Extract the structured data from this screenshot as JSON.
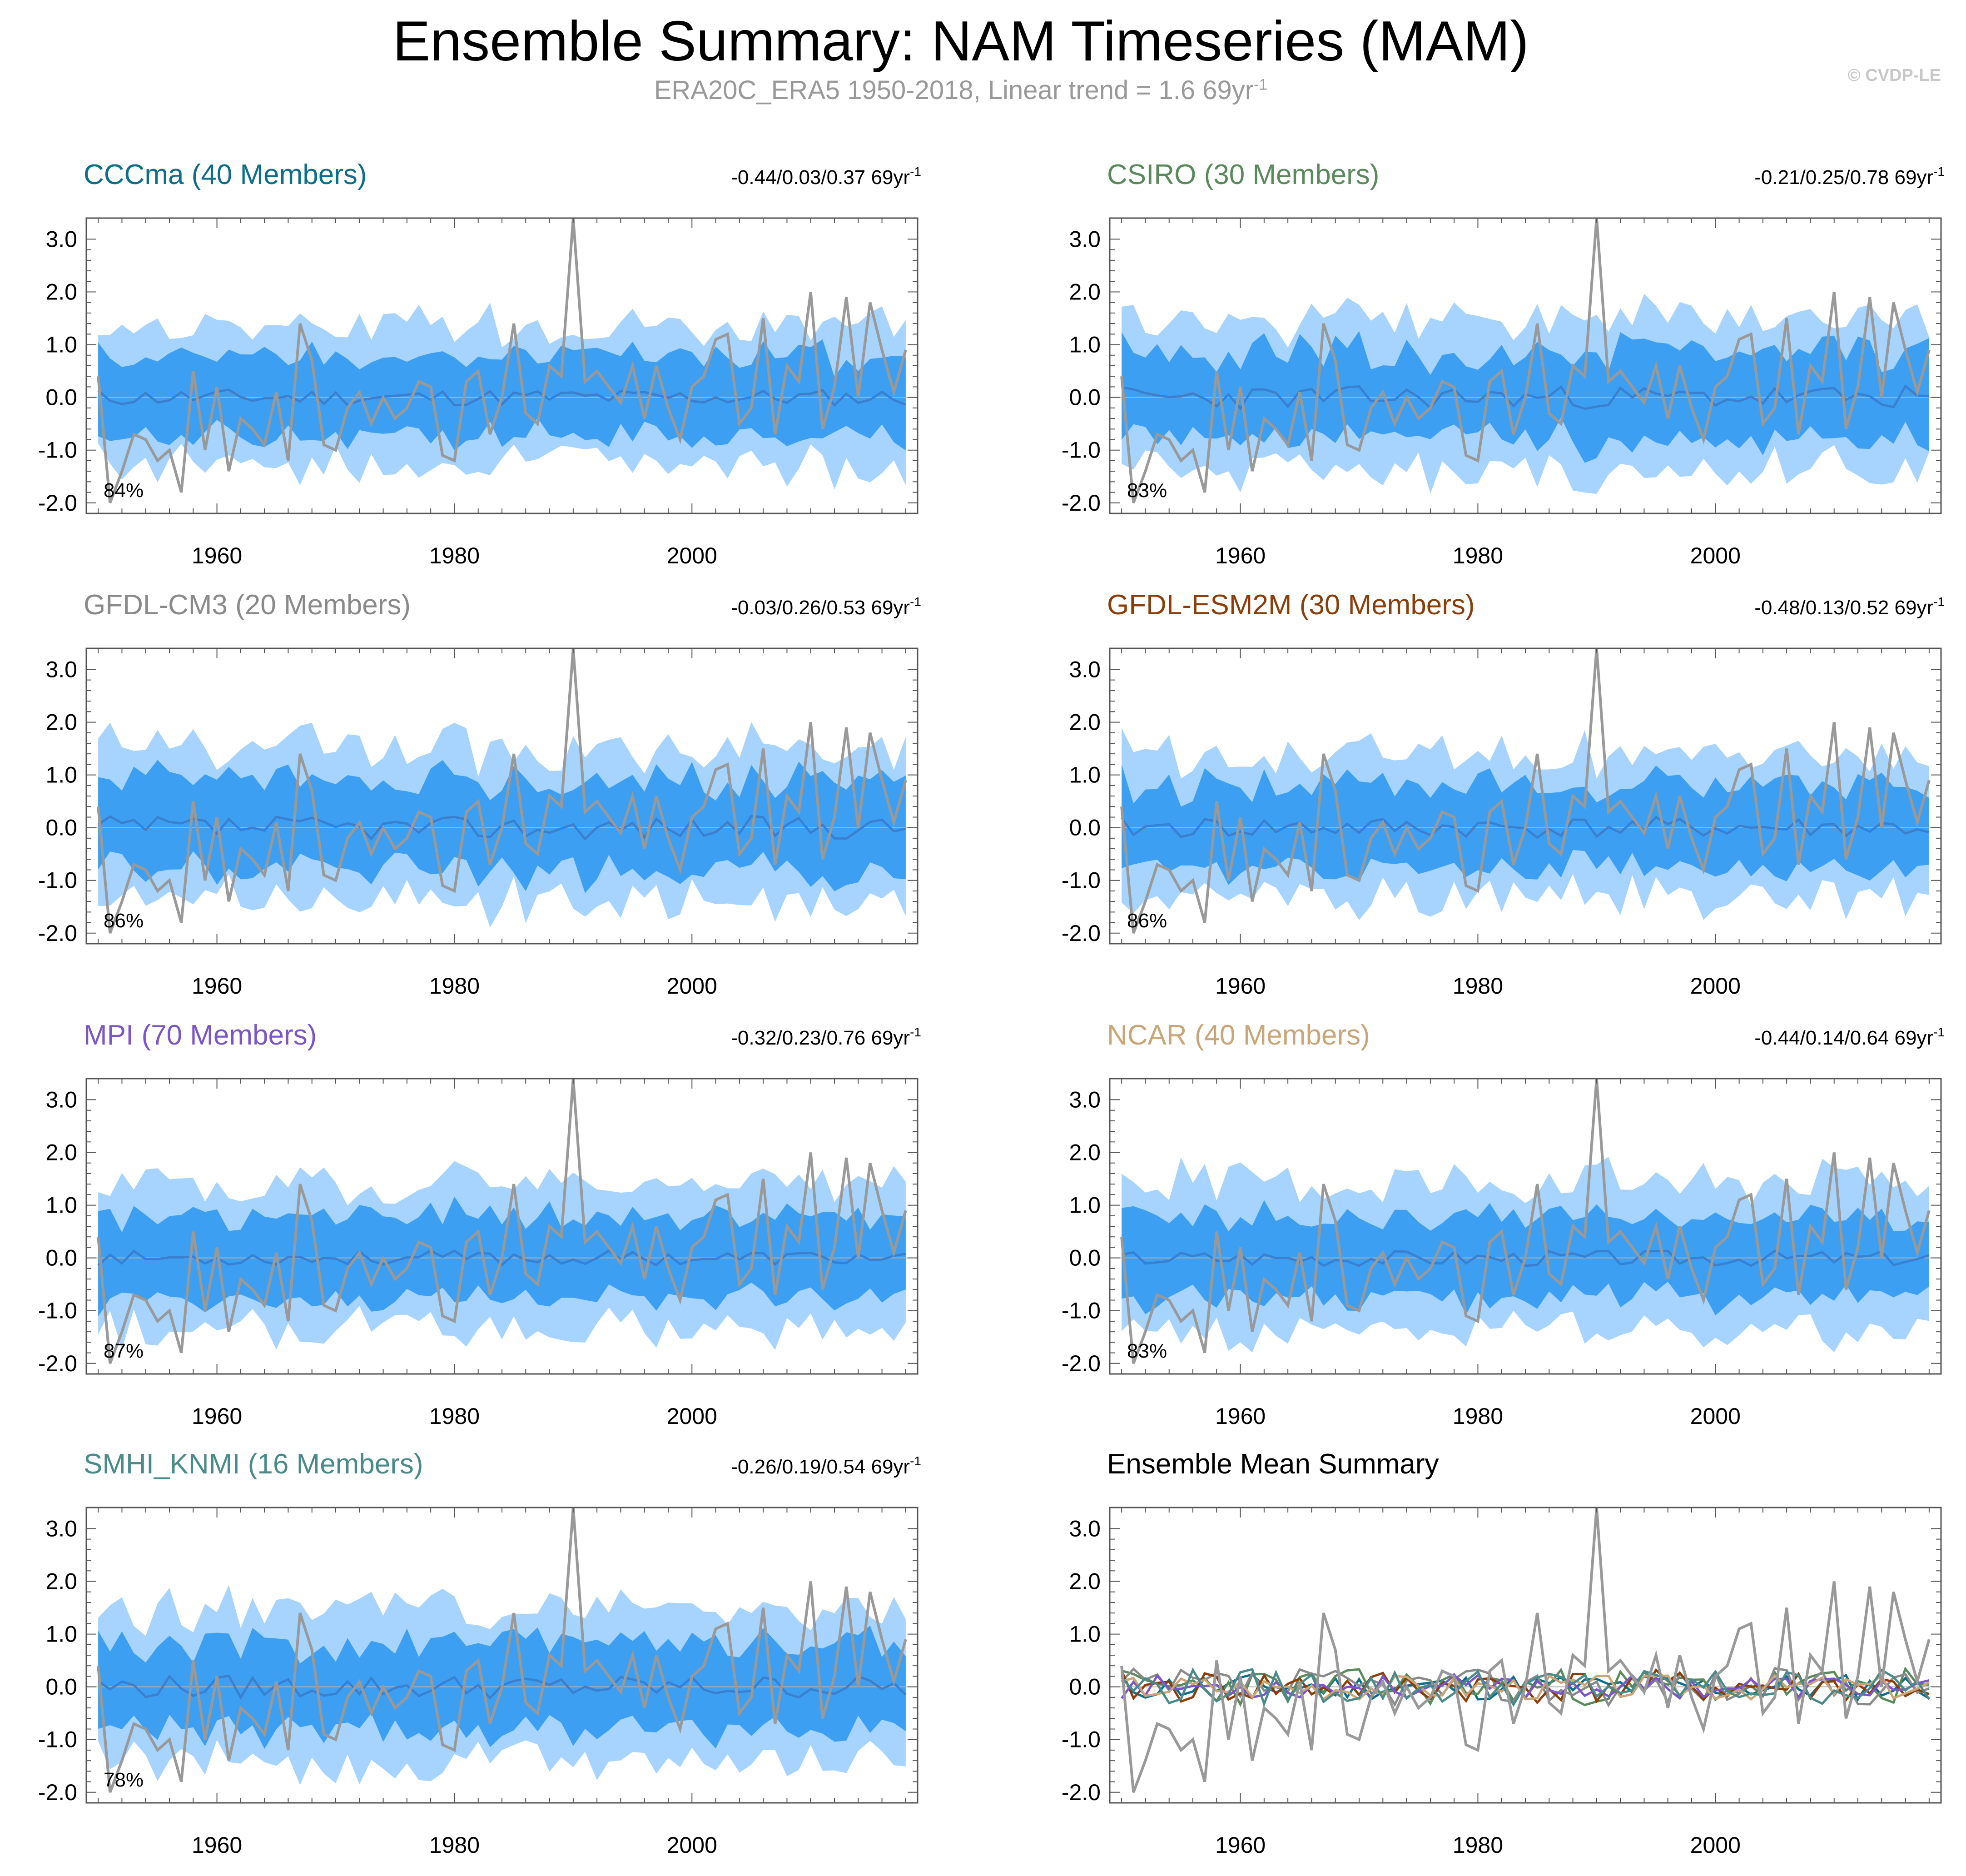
{
  "header": {
    "title": "Ensemble Summary: NAM Timeseries (MAM)",
    "subtitle": "ERA20C_ERA5 1950-2018, Linear trend = 1.6 69yr",
    "subtitle_sup": "-1",
    "copyright": "© CVDP-LE"
  },
  "colors": {
    "band_outer": "#a6d4ff",
    "band_inner": "#3d9ff2",
    "ens_mean": "#3a7fd0",
    "obs": "#999999",
    "zero_line": "#b0b0b0"
  },
  "chart_data": [
    {
      "type": "area",
      "panel": "CCCma",
      "title": "CCCma (40 Members)",
      "title_color": "#0d6e8c",
      "trend": "-0.44/0.03/0.37 69yr",
      "trend_sup": "-1",
      "pct": "84%",
      "seed": 11,
      "mean_amp": 0.16,
      "inner_w": 0.75,
      "outer_w": 1.35,
      "xlim": [
        1949,
        2019
      ],
      "ylim": [
        -2.2,
        3.4
      ],
      "xticks": [
        "1960",
        "1980",
        "2000"
      ],
      "yticks": [
        "3.0",
        "2.0",
        "1.0",
        "0.0",
        "-1.0",
        "-2.0"
      ]
    },
    {
      "type": "area",
      "panel": "CSIRO",
      "title": "CSIRO (30 Members)",
      "title_color": "#5a8a5c",
      "trend": "-0.21/0.25/0.78 69yr",
      "trend_sup": "-1",
      "pct": "83%",
      "seed": 23,
      "mean_amp": 0.22,
      "inner_w": 0.85,
      "outer_w": 1.45,
      "xlim": [
        1949,
        2019
      ],
      "ylim": [
        -2.2,
        3.4
      ],
      "xticks": [
        "1960",
        "1980",
        "2000"
      ],
      "yticks": [
        "3.0",
        "2.0",
        "1.0",
        "0.0",
        "-1.0",
        "-2.0"
      ]
    },
    {
      "type": "area",
      "panel": "GFDL-CM3",
      "title": "GFDL-CM3 (20 Members)",
      "title_color": "#8a8a8a",
      "trend": "-0.03/0.26/0.53 69yr",
      "trend_sup": "-1",
      "pct": "86%",
      "seed": 37,
      "mean_amp": 0.22,
      "inner_w": 0.85,
      "outer_w": 1.45,
      "xlim": [
        1949,
        2019
      ],
      "ylim": [
        -2.2,
        3.4
      ],
      "xticks": [
        "1960",
        "1980",
        "2000"
      ],
      "yticks": [
        "3.0",
        "2.0",
        "1.0",
        "0.0",
        "-1.0",
        "-2.0"
      ]
    },
    {
      "type": "area",
      "panel": "GFDL-ESM2M",
      "title": "GFDL-ESM2M (30 Members)",
      "title_color": "#8b3e0a",
      "trend": "-0.48/0.13/0.52 69yr",
      "trend_sup": "-1",
      "pct": "86%",
      "seed": 41,
      "mean_amp": 0.2,
      "inner_w": 0.8,
      "outer_w": 1.4,
      "xlim": [
        1949,
        2019
      ],
      "ylim": [
        -2.2,
        3.4
      ],
      "xticks": [
        "1960",
        "1980",
        "2000"
      ],
      "yticks": [
        "3.0",
        "2.0",
        "1.0",
        "0.0",
        "-1.0",
        "-2.0"
      ]
    },
    {
      "type": "area",
      "panel": "MPI",
      "title": "MPI (70 Members)",
      "title_color": "#7b55c9",
      "trend": "-0.32/0.23/0.76 69yr",
      "trend_sup": "-1",
      "pct": "87%",
      "seed": 53,
      "mean_amp": 0.14,
      "inner_w": 0.8,
      "outer_w": 1.4,
      "xlim": [
        1949,
        2019
      ],
      "ylim": [
        -2.2,
        3.4
      ],
      "xticks": [
        "1960",
        "1980",
        "2000"
      ],
      "yticks": [
        "3.0",
        "2.0",
        "1.0",
        "0.0",
        "-1.0",
        "-2.0"
      ]
    },
    {
      "type": "area",
      "panel": "NCAR",
      "title": "NCAR (40 Members)",
      "title_color": "#c9a577",
      "trend": "-0.44/0.14/0.64 69yr",
      "trend_sup": "-1",
      "pct": "83%",
      "seed": 67,
      "mean_amp": 0.15,
      "inner_w": 0.8,
      "outer_w": 1.45,
      "xlim": [
        1949,
        2019
      ],
      "ylim": [
        -2.2,
        3.4
      ],
      "xticks": [
        "1960",
        "1980",
        "2000"
      ],
      "yticks": [
        "3.0",
        "2.0",
        "1.0",
        "0.0",
        "-1.0",
        "-2.0"
      ]
    },
    {
      "type": "area",
      "panel": "SMHI_KNMI",
      "title": "SMHI_KNMI (16 Members)",
      "title_color": "#4a8a8a",
      "trend": "-0.26/0.19/0.54 69yr",
      "trend_sup": "-1",
      "pct": "78%",
      "seed": 79,
      "mean_amp": 0.22,
      "inner_w": 0.85,
      "outer_w": 1.45,
      "xlim": [
        1949,
        2019
      ],
      "ylim": [
        -2.2,
        3.4
      ],
      "xticks": [
        "1960",
        "1980",
        "2000"
      ],
      "yticks": [
        "3.0",
        "2.0",
        "1.0",
        "0.0",
        "-1.0",
        "-2.0"
      ]
    },
    {
      "type": "line",
      "panel": "EnsembleMean",
      "title": "Ensemble Mean Summary",
      "title_color": "#000000",
      "trend": "",
      "trend_sup": "",
      "pct": "",
      "xlim": [
        1949,
        2019
      ],
      "ylim": [
        -2.2,
        3.4
      ],
      "xticks": [
        "1960",
        "1980",
        "2000"
      ],
      "yticks": [
        "3.0",
        "2.0",
        "1.0",
        "0.0",
        "-1.0",
        "-2.0"
      ]
    }
  ],
  "obs_series": {
    "name": "ERA20C_ERA5",
    "years_start": 1950,
    "values": [
      0.4,
      -2.0,
      -1.4,
      -0.7,
      -0.8,
      -1.2,
      -1.0,
      -1.8,
      0.5,
      -1.0,
      0.2,
      -1.4,
      -0.4,
      -0.6,
      -0.9,
      0.1,
      -1.2,
      1.4,
      0.7,
      -0.9,
      -1.0,
      -0.2,
      0.1,
      -0.5,
      0.0,
      -0.4,
      -0.2,
      0.3,
      0.2,
      -1.1,
      -1.2,
      0.3,
      0.5,
      -0.7,
      0.0,
      1.4,
      -0.3,
      -0.5,
      0.6,
      0.4,
      3.4,
      0.3,
      0.5,
      0.2,
      -0.1,
      0.6,
      -0.4,
      0.6,
      -0.2,
      -0.8,
      0.2,
      0.4,
      1.1,
      1.2,
      -0.5,
      -0.2,
      1.5,
      -0.7,
      0.6,
      0.3,
      2.0,
      -0.6,
      0.2,
      1.9,
      0.0,
      1.8,
      0.9,
      0.1,
      0.9
    ]
  },
  "ensemble_mean_lines": [
    {
      "name": "CCCma",
      "color": "#0d6e8c",
      "seed": 11,
      "amp": 0.16
    },
    {
      "name": "CSIRO",
      "color": "#5a8a5c",
      "seed": 23,
      "amp": 0.22
    },
    {
      "name": "GFDL-CM3",
      "color": "#8a8a8a",
      "seed": 37,
      "amp": 0.22
    },
    {
      "name": "GFDL-ESM2M",
      "color": "#8b3e0a",
      "seed": 41,
      "amp": 0.2
    },
    {
      "name": "MPI",
      "color": "#7b55c9",
      "seed": 53,
      "amp": 0.14
    },
    {
      "name": "NCAR",
      "color": "#c9a577",
      "seed": 67,
      "amp": 0.15
    },
    {
      "name": "SMHI_KNMI",
      "color": "#4a8a8a",
      "seed": 79,
      "amp": 0.22
    }
  ]
}
